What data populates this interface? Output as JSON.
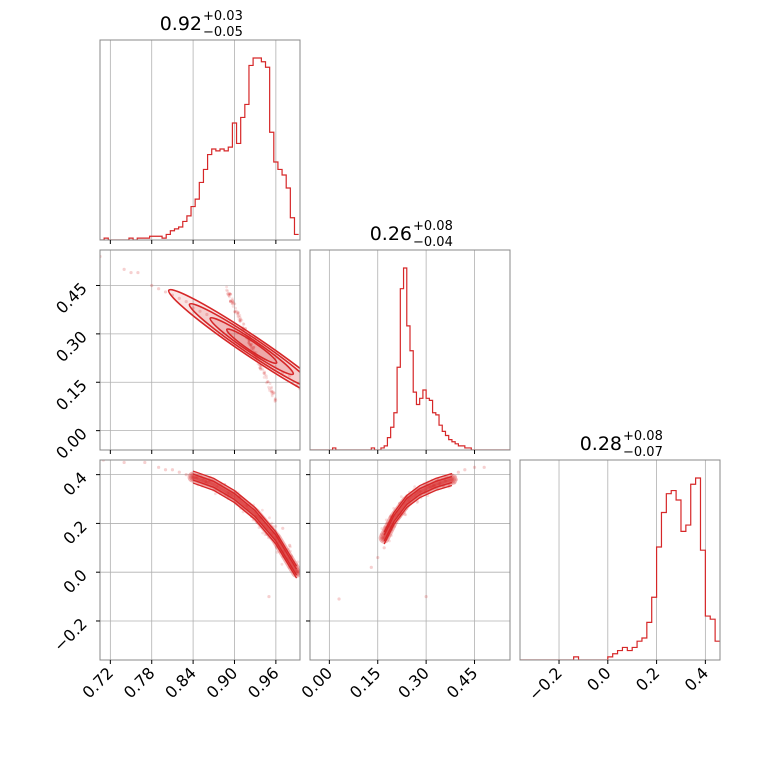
{
  "chart_data": {
    "type": "corner",
    "color": "#d62728",
    "grid": true,
    "titles": [
      {
        "value": "0.92",
        "plus": "+0.03",
        "minus": "−0.05"
      },
      {
        "value": "0.26",
        "plus": "+0.08",
        "minus": "−0.04"
      },
      {
        "value": "0.28",
        "plus": "+0.08",
        "minus": "−0.07"
      }
    ],
    "params": [
      {
        "range": [
          0.705,
          0.995
        ],
        "ticks": [
          0.72,
          0.78,
          0.84,
          0.9,
          0.96
        ],
        "tick_labels": [
          "0.72",
          "0.78",
          "0.84",
          "0.90",
          "0.96"
        ]
      },
      {
        "range": [
          -0.06,
          0.56
        ],
        "ticks": [
          0.0,
          0.15,
          0.3,
          0.45
        ],
        "tick_labels": [
          "0.00",
          "0.15",
          "0.30",
          "0.45"
        ]
      },
      {
        "range": [
          -0.36,
          0.46
        ],
        "ticks": [
          -0.2,
          0.0,
          0.2,
          0.4
        ],
        "tick_labels": [
          "−0.2",
          "0.0",
          "0.2",
          "0.4"
        ]
      }
    ],
    "histograms": [
      {
        "bin_centers": [
          0.708,
          0.714,
          0.72,
          0.726,
          0.732,
          0.738,
          0.744,
          0.75,
          0.756,
          0.762,
          0.768,
          0.774,
          0.78,
          0.786,
          0.792,
          0.798,
          0.804,
          0.81,
          0.816,
          0.822,
          0.828,
          0.834,
          0.84,
          0.846,
          0.852,
          0.858,
          0.864,
          0.87,
          0.876,
          0.882,
          0.888,
          0.894,
          0.9,
          0.906,
          0.912,
          0.918,
          0.924,
          0.93,
          0.936,
          0.942,
          0.948,
          0.954,
          0.96,
          0.966,
          0.972,
          0.978,
          0.984,
          0.99
        ],
        "counts": [
          0,
          1,
          0,
          0,
          0,
          0,
          0,
          1,
          0,
          1,
          1,
          1,
          2,
          2,
          2,
          1,
          3,
          5,
          6,
          7,
          10,
          13,
          18,
          22,
          31,
          38,
          46,
          49,
          48,
          49,
          48,
          50,
          63,
          52,
          66,
          73,
          94,
          98,
          98,
          96,
          93,
          58,
          42,
          38,
          35,
          28,
          12,
          3
        ]
      },
      {
        "bin_centers": [
          -0.055,
          -0.045,
          -0.035,
          -0.025,
          -0.015,
          -0.005,
          0.005,
          0.015,
          0.025,
          0.035,
          0.045,
          0.055,
          0.065,
          0.075,
          0.085,
          0.095,
          0.105,
          0.115,
          0.125,
          0.135,
          0.145,
          0.155,
          0.165,
          0.175,
          0.185,
          0.195,
          0.205,
          0.215,
          0.225,
          0.235,
          0.245,
          0.255,
          0.265,
          0.275,
          0.285,
          0.295,
          0.305,
          0.315,
          0.325,
          0.335,
          0.345,
          0.355,
          0.365,
          0.375,
          0.385,
          0.395,
          0.405,
          0.415,
          0.425,
          0.435,
          0.445,
          0.455,
          0.465,
          0.475,
          0.485,
          0.495,
          0.505,
          0.515,
          0.525,
          0.535,
          0.545,
          0.555
        ],
        "counts": [
          0,
          0,
          0,
          0,
          0,
          0,
          0,
          1,
          0,
          0,
          0,
          0,
          0,
          0,
          0,
          0,
          0,
          0,
          0,
          1,
          0,
          0,
          1,
          2,
          6,
          11,
          18,
          40,
          78,
          88,
          60,
          48,
          28,
          22,
          25,
          29,
          25,
          24,
          18,
          17,
          12,
          9,
          7,
          5,
          4,
          3,
          2,
          2,
          1,
          1,
          0,
          0,
          0,
          0,
          0,
          0,
          0,
          0,
          0,
          0,
          0,
          0
        ]
      },
      {
        "bin_centers": [
          -0.35,
          -0.33,
          -0.31,
          -0.29,
          -0.27,
          -0.25,
          -0.23,
          -0.21,
          -0.19,
          -0.17,
          -0.15,
          -0.13,
          -0.11,
          -0.09,
          -0.07,
          -0.05,
          -0.03,
          -0.01,
          0.01,
          0.03,
          0.05,
          0.07,
          0.09,
          0.11,
          0.13,
          0.15,
          0.17,
          0.19,
          0.21,
          0.23,
          0.25,
          0.27,
          0.29,
          0.31,
          0.33,
          0.35,
          0.37,
          0.39,
          0.41,
          0.43,
          0.45
        ],
        "counts": [
          0,
          0,
          0,
          0,
          0,
          0,
          0,
          0,
          0,
          0,
          0,
          1,
          0,
          0,
          0,
          0,
          0,
          0,
          1,
          2,
          3,
          4,
          3,
          4,
          6,
          7,
          12,
          20,
          36,
          47,
          53,
          54,
          51,
          41,
          43,
          56,
          58,
          35,
          14,
          13,
          6
        ]
      }
    ],
    "pairs": [
      {
        "x_param": 0,
        "y_param": 1,
        "mean": [
          0.925,
          0.262
        ],
        "sd_major": 0.03,
        "sd_minor": 0.006,
        "samples": [
          [
            0.705,
            0.54
          ],
          [
            0.74,
            0.5
          ],
          [
            0.75,
            0.49
          ],
          [
            0.76,
            0.49
          ],
          [
            0.78,
            0.45
          ],
          [
            0.79,
            0.44
          ],
          [
            0.8,
            0.43
          ],
          [
            0.81,
            0.42
          ],
          [
            0.82,
            0.41
          ],
          [
            0.83,
            0.4
          ],
          [
            0.84,
            0.38
          ],
          [
            0.85,
            0.37
          ],
          [
            0.86,
            0.36
          ],
          [
            0.97,
            0.18
          ],
          [
            0.98,
            0.17
          ],
          [
            0.99,
            0.14
          ],
          [
            0.995,
            0.13
          ]
        ]
      },
      {
        "x_param": 0,
        "y_param": 2,
        "curve_x": [
          0.84,
          0.87,
          0.9,
          0.93,
          0.96,
          0.99
        ],
        "curve_y": [
          0.39,
          0.36,
          0.31,
          0.24,
          0.14,
          0.0
        ],
        "samples": [
          [
            0.71,
            0.46
          ],
          [
            0.74,
            0.45
          ],
          [
            0.77,
            0.45
          ],
          [
            0.79,
            0.43
          ],
          [
            0.8,
            0.42
          ],
          [
            0.81,
            0.42
          ],
          [
            0.82,
            0.41
          ],
          [
            0.83,
            0.4
          ],
          [
            0.95,
            -0.1
          ],
          [
            0.97,
            0.18
          ],
          [
            0.98,
            0.11
          ],
          [
            0.99,
            0.03
          ]
        ]
      },
      {
        "x_param": 1,
        "y_param": 2,
        "curve_x": [
          0.17,
          0.2,
          0.24,
          0.28,
          0.33,
          0.38
        ],
        "curve_y": [
          0.14,
          0.22,
          0.29,
          0.33,
          0.36,
          0.38
        ],
        "samples": [
          [
            0.03,
            -0.11
          ],
          [
            0.13,
            0.02
          ],
          [
            0.15,
            0.06
          ],
          [
            0.17,
            0.1
          ],
          [
            0.38,
            0.4
          ],
          [
            0.4,
            0.41
          ],
          [
            0.42,
            0.42
          ],
          [
            0.45,
            0.43
          ],
          [
            0.48,
            0.43
          ],
          [
            0.3,
            -0.1
          ]
        ]
      }
    ]
  }
}
